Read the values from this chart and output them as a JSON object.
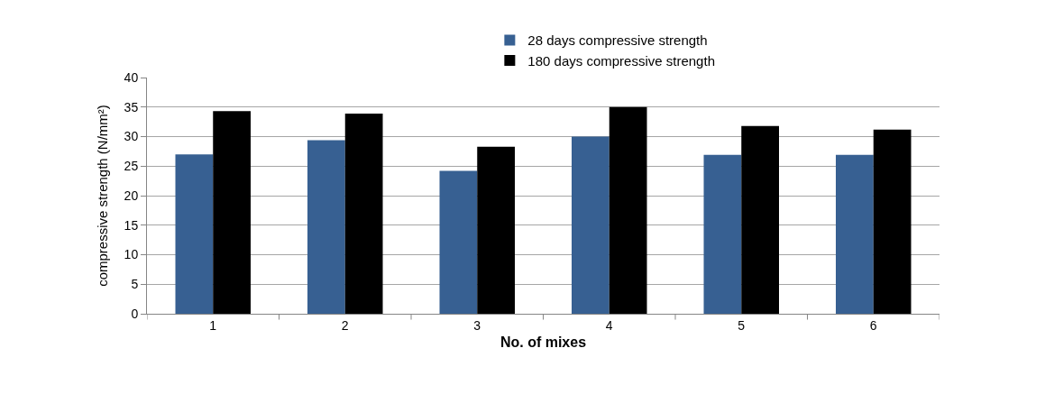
{
  "chart_data": {
    "type": "bar",
    "xlabel": "No. of mixes",
    "ylabel": "compressive strength (N/mm²)",
    "categories": [
      "1",
      "2",
      "3",
      "4",
      "5",
      "6"
    ],
    "series": [
      {
        "name": "28 days compressive strength",
        "color": "#376092",
        "values": [
          27,
          29.4,
          24.2,
          30,
          26.9,
          26.9
        ]
      },
      {
        "name": "180 days compressive strength",
        "color": "#000000",
        "values": [
          34.3,
          33.9,
          28.3,
          35,
          31.8,
          31.2
        ]
      }
    ],
    "ylim": [
      0,
      40
    ],
    "yticks": [
      0,
      5,
      10,
      15,
      20,
      25,
      30,
      35,
      40
    ],
    "grid": "y",
    "legend": "top"
  }
}
